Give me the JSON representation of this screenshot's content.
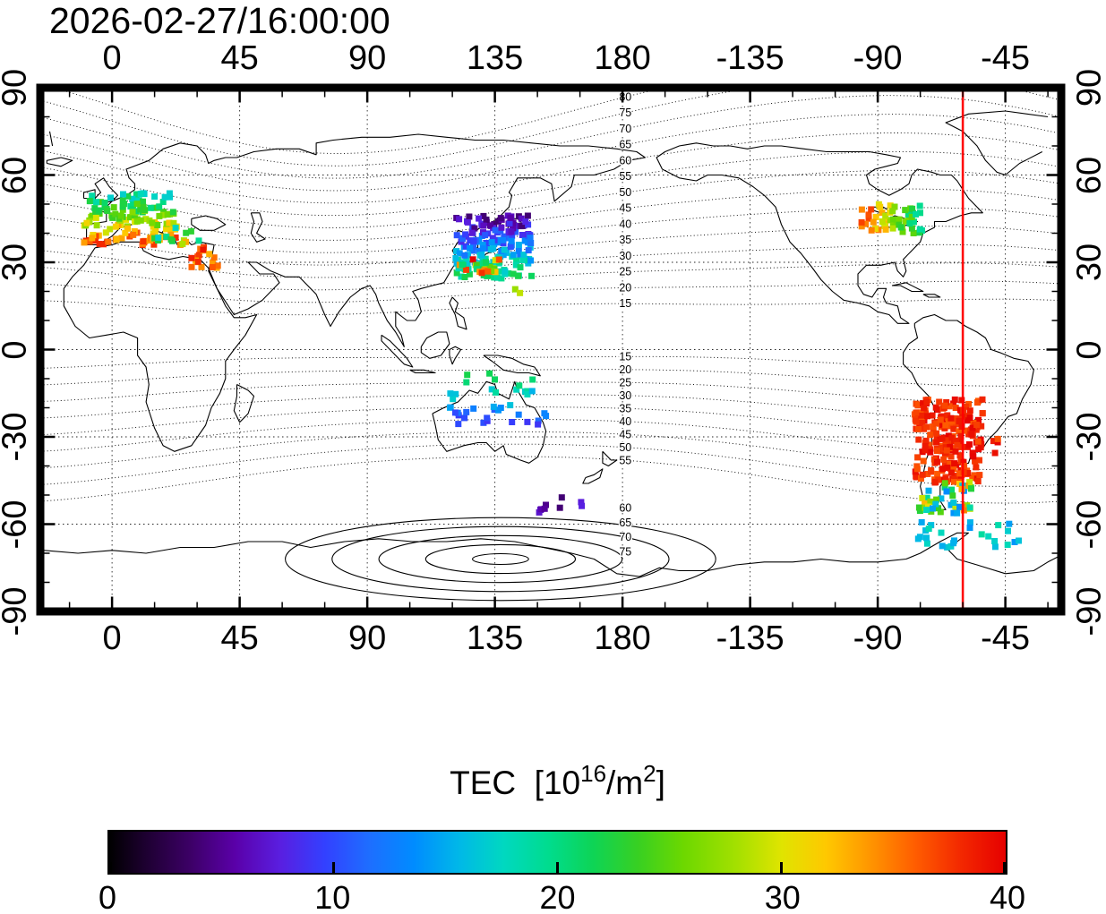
{
  "header": {
    "timestamp": "2026-02-27/16:00:00"
  },
  "axes": {
    "lon_labels": [
      "0",
      "45",
      "90",
      "135",
      "180",
      "-135",
      "-90",
      "-45"
    ],
    "lon_values": [
      0,
      45,
      90,
      135,
      180,
      -135,
      -90,
      -45
    ],
    "lat_labels": [
      "90",
      "60",
      "30",
      "0",
      "-30",
      "-60",
      "-90"
    ],
    "lat_values": [
      90,
      60,
      30,
      0,
      -30,
      -60,
      -90
    ]
  },
  "map": {
    "extent": {
      "lon_min": -25.3,
      "lon_max": 334.7,
      "lat_min": -90,
      "lat_max": 90
    },
    "grid_lon_step": 45,
    "grid_lat_step": 30,
    "red_meridian_lon": -60,
    "red_meridian_color": "#ff0000"
  },
  "colorbar": {
    "title_prefix": "TEC  [10",
    "title_sup_1": "16",
    "title_mid": "/m",
    "title_sup_2": "2",
    "title_suffix": "]",
    "tick_labels": [
      "0",
      "10",
      "20",
      "30",
      "40"
    ],
    "tick_values": [
      0,
      10,
      20,
      30,
      40
    ],
    "min": 0,
    "max": 40,
    "stops": [
      [
        0.0,
        "#000000"
      ],
      [
        0.04,
        "#1d0030"
      ],
      [
        0.09,
        "#3c0066"
      ],
      [
        0.14,
        "#5a00a8"
      ],
      [
        0.19,
        "#5a1ee0"
      ],
      [
        0.24,
        "#3340ff"
      ],
      [
        0.29,
        "#1e6eff"
      ],
      [
        0.34,
        "#008cff"
      ],
      [
        0.39,
        "#00b8e8"
      ],
      [
        0.44,
        "#00d8c0"
      ],
      [
        0.49,
        "#00dc8e"
      ],
      [
        0.54,
        "#0ed455"
      ],
      [
        0.59,
        "#38d022"
      ],
      [
        0.64,
        "#6cd800"
      ],
      [
        0.7,
        "#a4e000"
      ],
      [
        0.75,
        "#e0e400"
      ],
      [
        0.8,
        "#ffc800"
      ],
      [
        0.85,
        "#ff9400"
      ],
      [
        0.9,
        "#ff5c00"
      ],
      [
        0.95,
        "#f32800"
      ],
      [
        1.0,
        "#e60000"
      ]
    ]
  },
  "chart_data": {
    "type": "scatter",
    "title": "2026-02-27/16:00:00",
    "description": "Global ionospheric TEC observations plotted as colored squares on a world map (longitude -25..335, latitude -90..90) with dotted geomagnetic-latitude contours labeled along 180E, a red meridian line at longitude -60, and a rainbow colorbar 0-40 TEC units.",
    "colorbar_label": "TEC [10^16/m^2]",
    "value_range": [
      0,
      40
    ],
    "contour_labels_north": [
      80,
      75,
      70,
      65,
      60,
      55,
      50,
      45,
      40,
      35,
      30,
      25,
      20,
      15
    ],
    "contour_labels_south": [
      15,
      20,
      25,
      30,
      35,
      40,
      45,
      50,
      55,
      60,
      65,
      70,
      75
    ],
    "contour_label_lon": 181,
    "red_meridian_lon": -60,
    "clusters": [
      {
        "name": "western-europe",
        "lon_range": [
          -10,
          23
        ],
        "lat_range": [
          36,
          54
        ],
        "n": 150,
        "tec_range": [
          17,
          38
        ],
        "gradient": "lat_desc",
        "seed": 11
      },
      {
        "name": "balkans-sparse",
        "lon_range": [
          14,
          31
        ],
        "lat_range": [
          37,
          44
        ],
        "n": 12,
        "tec_range": [
          17,
          27
        ],
        "gradient": "none",
        "seed": 77
      },
      {
        "name": "anatolia-pair",
        "lon_range": [
          22,
          27
        ],
        "lat_range": [
          35,
          38
        ],
        "n": 4,
        "tec_range": [
          28,
          35
        ],
        "gradient": "none",
        "seed": 31
      },
      {
        "name": "middle-east",
        "lon_range": [
          28,
          40
        ],
        "lat_range": [
          28,
          36
        ],
        "n": 18,
        "tec_range": [
          32,
          40
        ],
        "gradient": "none",
        "seed": 22
      },
      {
        "name": "east-asia-japan",
        "lon_range": [
          121,
          148
        ],
        "lat_range": [
          24,
          46
        ],
        "n": 180,
        "tec_range": [
          4,
          22
        ],
        "gradient": "lat_desc",
        "seed": 33
      },
      {
        "name": "east-asia-south-edge",
        "lon_range": [
          122,
          137
        ],
        "lat_range": [
          26,
          31
        ],
        "n": 26,
        "tec_range": [
          20,
          40
        ],
        "gradient": "none",
        "seed": 44
      },
      {
        "name": "philippine-sea-outlier",
        "lon_range": [
          142,
          146
        ],
        "lat_range": [
          18,
          21
        ],
        "n": 2,
        "tec_range": [
          26,
          30
        ],
        "gradient": "none",
        "seed": 45
      },
      {
        "name": "southeast-asia-australia",
        "lon_range": [
          118,
          156
        ],
        "lat_range": [
          -26,
          -8
        ],
        "n": 40,
        "tec_range": [
          9,
          22
        ],
        "gradient": "lat_asc",
        "seed": 55
      },
      {
        "name": "south-of-new-zealand",
        "lon_range": [
          148,
          166
        ],
        "lat_range": [
          -56,
          -50
        ],
        "n": 9,
        "tec_range": [
          4,
          8
        ],
        "gradient": "none",
        "seed": 66
      },
      {
        "name": "north-america-great-lakes",
        "lon_range": [
          -96,
          -74
        ],
        "lat_range": [
          40,
          50
        ],
        "n": 55,
        "tec_range": [
          19,
          37
        ],
        "gradient": "lon_desc",
        "seed": 88
      },
      {
        "name": "south-america-core",
        "lon_range": [
          -77,
          -53
        ],
        "lat_range": [
          -46,
          -17
        ],
        "n": 240,
        "tec_range": [
          36,
          40
        ],
        "gradient": "none",
        "seed": 99
      },
      {
        "name": "south-america-east-outliers",
        "lon_range": [
          -50,
          -44
        ],
        "lat_range": [
          -36,
          -30
        ],
        "n": 4,
        "tec_range": [
          36,
          40
        ],
        "gradient": "none",
        "seed": 101
      },
      {
        "name": "patagonia-mixed",
        "lon_range": [
          -76,
          -57
        ],
        "lat_range": [
          -57,
          -45
        ],
        "n": 42,
        "tec_range": [
          13,
          35
        ],
        "gradient": "none",
        "seed": 111
      },
      {
        "name": "antarctic-peninsula-band",
        "lon_range": [
          -76,
          -38
        ],
        "lat_range": [
          -68,
          -59
        ],
        "n": 26,
        "tec_range": [
          13,
          19
        ],
        "gradient": "none",
        "seed": 121
      }
    ]
  }
}
